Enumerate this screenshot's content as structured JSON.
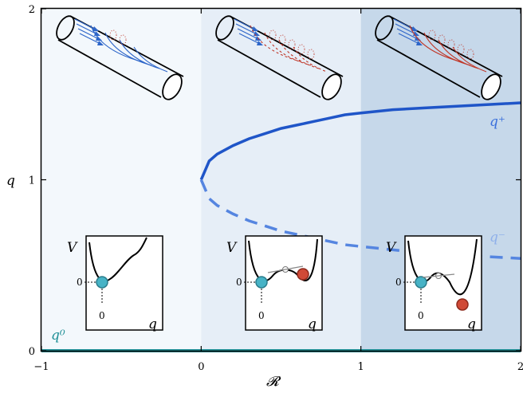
{
  "chart_data": {
    "type": "line",
    "xlabel": "𝓡",
    "ylabel": "q",
    "xlim": [
      -1,
      2
    ],
    "ylim": [
      0,
      2
    ],
    "xticks": [
      "−1",
      "0",
      "1",
      "2"
    ],
    "yticks": [
      "0",
      "1",
      "2"
    ],
    "regions": [
      {
        "x": [
          -1,
          0
        ],
        "color": "#f3f8fc"
      },
      {
        "x": [
          0,
          1
        ],
        "color": "#e6eef7"
      },
      {
        "x": [
          1,
          2
        ],
        "color": "#c6d8ea"
      }
    ],
    "series": [
      {
        "name": "q⁺",
        "style": "solid",
        "color": "#1f55c8",
        "x": [
          0,
          0.05,
          0.1,
          0.2,
          0.3,
          0.4,
          0.5,
          0.6,
          0.7,
          0.8,
          0.9,
          1.0,
          1.2,
          1.4,
          1.6,
          1.8,
          2.0
        ],
        "y": [
          1.0,
          1.11,
          1.15,
          1.2,
          1.24,
          1.27,
          1.3,
          1.32,
          1.34,
          1.36,
          1.38,
          1.39,
          1.41,
          1.42,
          1.43,
          1.44,
          1.45
        ]
      },
      {
        "name": "q⁻",
        "style": "dashed",
        "color": "#5585e0",
        "x": [
          0,
          0.05,
          0.1,
          0.2,
          0.3,
          0.4,
          0.5,
          0.6,
          0.7,
          0.8,
          0.9,
          1.0,
          1.2,
          1.4,
          1.6,
          1.8,
          2.0
        ],
        "y": [
          1.0,
          0.89,
          0.85,
          0.8,
          0.76,
          0.73,
          0.7,
          0.68,
          0.66,
          0.64,
          0.62,
          0.61,
          0.59,
          0.57,
          0.56,
          0.55,
          0.54
        ]
      },
      {
        "name": "q⁰",
        "style": "solid",
        "color": "#1f8f96",
        "x": [
          -1,
          2
        ],
        "y": [
          0,
          0
        ]
      }
    ],
    "annotations": [
      {
        "text": "q⁺",
        "x": 1.86,
        "y": 1.35,
        "color": "#3b70dc"
      },
      {
        "text": "q⁻",
        "x": 1.86,
        "y": 0.65,
        "color": "#8fb0ea"
      },
      {
        "text": "q⁰",
        "x": -0.91,
        "y": 0.1,
        "color": "#1f8f96"
      }
    ],
    "insets": [
      {
        "position": "left",
        "y_label": "V",
        "x_label": "q",
        "tick_x": "0",
        "tick_y": "0",
        "wells": [
          "q⁰"
        ]
      },
      {
        "position": "middle",
        "y_label": "V",
        "x_label": "q",
        "tick_x": "0",
        "tick_y": "0",
        "wells": [
          "q⁰",
          "q⁺"
        ]
      },
      {
        "position": "right",
        "y_label": "V",
        "x_label": "q",
        "tick_x": "0",
        "tick_y": "0",
        "wells": [
          "q⁰",
          "q⁺"
        ]
      }
    ],
    "grid": false
  },
  "colors": {
    "teal_ball": "#47b3c6",
    "red_ball": "#d04a37",
    "flow_blue": "#2e66c9",
    "flow_red": "#c0392b"
  }
}
